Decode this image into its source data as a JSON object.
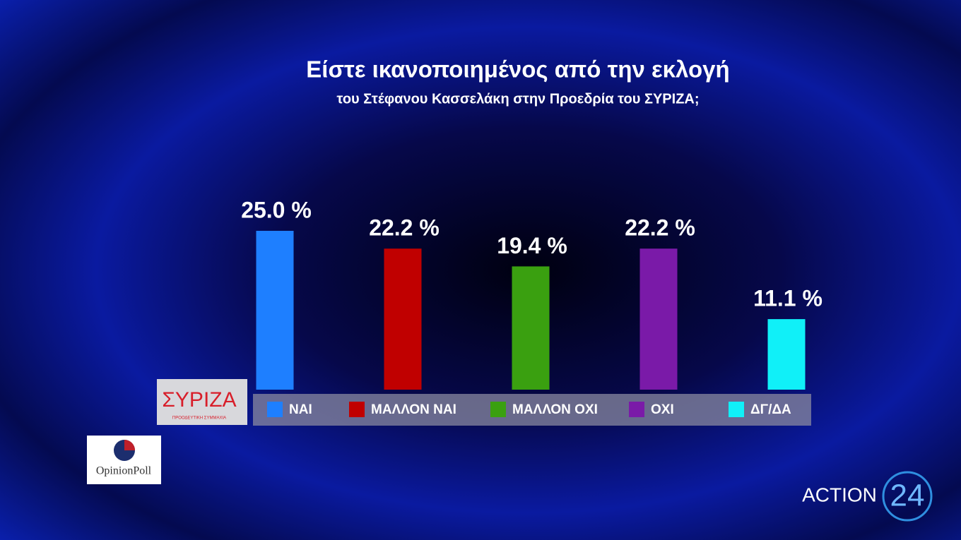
{
  "chart_data": {
    "type": "bar",
    "title": "Είστε ικανοποιημένος από την εκλογή",
    "subtitle": "του Στέφανου Κασσελάκη στην Προεδρία  του ΣΥΡΙΖΑ;",
    "categories": [
      "ΝΑΙ",
      "ΜΑΛΛΟΝ ΝΑΙ",
      "ΜΑΛΛΟΝ ΟΧΙ",
      "ΟΧΙ",
      "ΔΓ/ΔΑ"
    ],
    "values": [
      25.0,
      22.2,
      19.4,
      22.2,
      11.1
    ],
    "value_labels": [
      "25.0 %",
      "22.2 %",
      "19.4 %",
      "22.2 %",
      "11.1 %"
    ],
    "colors": [
      "#1e7fff",
      "#c00000",
      "#3aa010",
      "#7a1aa8",
      "#10f0f8"
    ]
  },
  "logos": {
    "party": "ΣΥΡΙΖΑ",
    "party_subtitle": "ΠΡΟΟΔΕΥΤΙΚΗ ΣΥΜΜΑΧΙΑ",
    "pollster": "OpinionPoll",
    "channel": "ACTION",
    "channel_number": "24"
  }
}
